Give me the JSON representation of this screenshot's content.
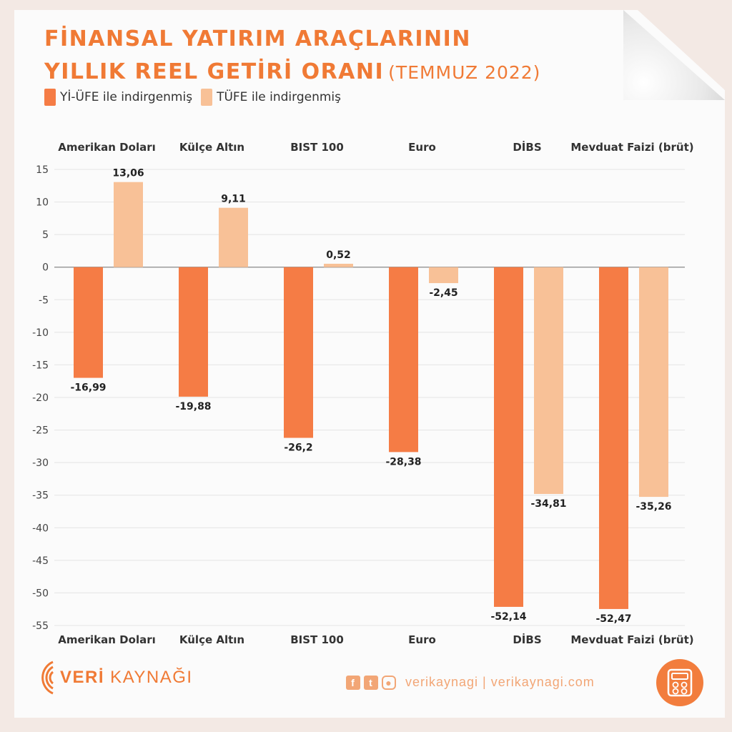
{
  "title": {
    "line1": "FİNANSAL YATIRIM ARAÇLARININ",
    "line2": "YILLIK REEL GETİRİ ORANI",
    "date": "(TEMMUZ 2022)"
  },
  "colors": {
    "accent": "#f07a35",
    "series1": "#f57c45",
    "series2": "#f8c197",
    "background": "#f3e9e4"
  },
  "footer": {
    "brand_bold": "VERİ",
    "brand_rest": " KAYNAĞI",
    "social_text": "verikaynagi | verikaynagi.com",
    "icons": [
      "facebook-icon",
      "twitter-icon",
      "instagram-icon",
      "calculator-icon"
    ]
  },
  "chart_data": {
    "type": "bar",
    "categories": [
      "Amerikan Doları",
      "Külçe Altın",
      "BIST 100",
      "Euro",
      "DİBS",
      "Mevduat Faizi (brüt)"
    ],
    "series": [
      {
        "name": "Yİ-ÜFE ile indirgenmiş",
        "values": [
          -16.99,
          -19.88,
          -26.2,
          -28.38,
          -52.14,
          -52.47
        ],
        "labels": [
          "-16,99",
          "-19,88",
          "-26,2",
          "-28,38",
          "-52,14",
          "-52,47"
        ]
      },
      {
        "name": "TÜFE ile indirgenmiş",
        "values": [
          13.06,
          9.11,
          0.52,
          -2.45,
          -34.81,
          -35.26
        ],
        "labels": [
          "13,06",
          "9,11",
          "0,52",
          "-2,45",
          "-34,81",
          "-35,26"
        ]
      }
    ],
    "yticks": [
      15,
      10,
      5,
      0,
      -5,
      -10,
      -15,
      -20,
      -25,
      -30,
      -35,
      -40,
      -45,
      -50,
      -55
    ],
    "ylim": [
      -55,
      15
    ],
    "grid": true,
    "legend": "top-left",
    "xlabel": "",
    "ylabel": ""
  }
}
